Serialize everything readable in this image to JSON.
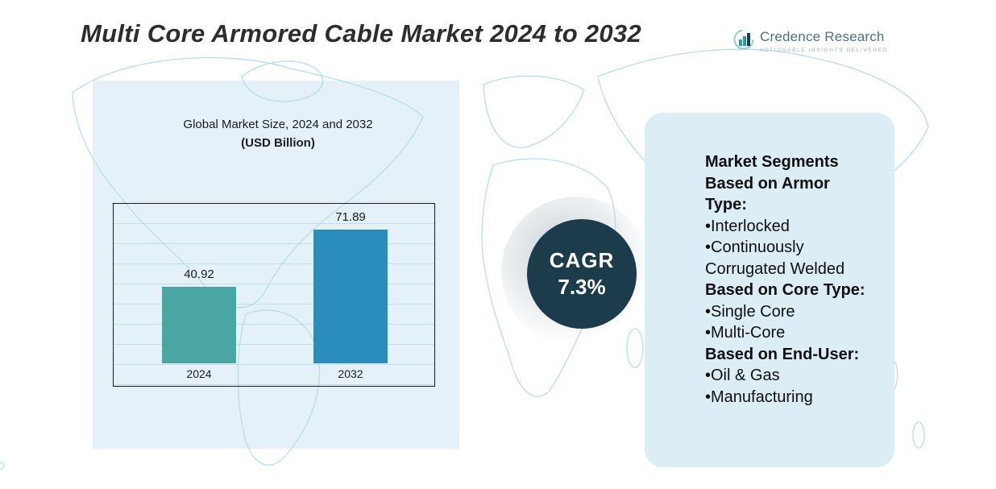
{
  "title": "Multi Core Armored Cable Market 2024 to 2032",
  "logo": {
    "name": "Credence Research",
    "tagline": "Actionable Insights Delivered"
  },
  "chart_data": {
    "type": "bar",
    "title": "Global Market Size, 2024 and 2032",
    "subtitle": "(USD Billion)",
    "categories": [
      "2024",
      "2032"
    ],
    "values": [
      40.92,
      71.89
    ],
    "bar_colors": [
      "#4aa6a3",
      "#2b8cbe"
    ],
    "xlabel": "",
    "ylabel": "USD Billion",
    "ylim": [
      0,
      80
    ],
    "grid": true,
    "legend": false
  },
  "cagr": {
    "label": "CAGR",
    "value": "7.3%"
  },
  "segments": {
    "lines": [
      "Market Segments",
      "Based on Armor",
      "Type:",
      "•Interlocked",
      "•Continuously",
      "Corrugated Welded",
      "Based on Core Type:",
      "•Single Core",
      "•Multi-Core",
      "Based on End-User:",
      "•Oil & Gas",
      "•Manufacturing"
    ]
  },
  "colors": {
    "bar_2024": "#4aa6a3",
    "bar_2032": "#2b8cbe",
    "cagr_circle": "#1c3c4c",
    "left_panel": "#e4f1f8",
    "right_panel": "#dcedf5",
    "map_line": "#b9dcea"
  }
}
